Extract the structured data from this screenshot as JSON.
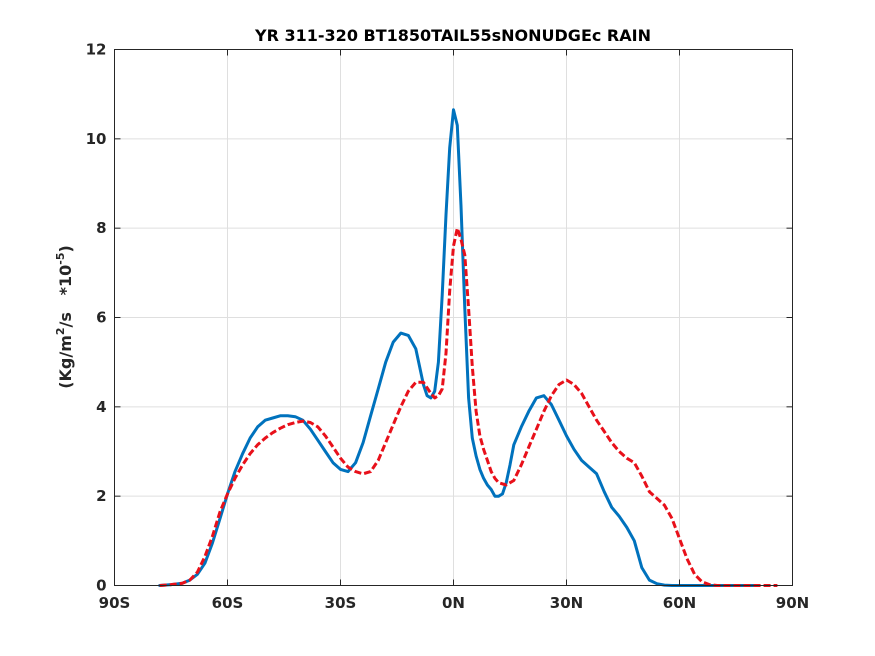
{
  "chart_data": {
    "type": "line",
    "title": "YR 311-320 BT1850TAIL55sNONUDGEc RAIN",
    "ylabel": {
      "main": "(Kg/m",
      "sup1": "2",
      "mid": "/s   *10",
      "sup2": "-5",
      "end": ")"
    },
    "xlim": [
      -90,
      90
    ],
    "ylim": [
      0,
      12
    ],
    "grid": true,
    "xticks": [
      -90,
      -60,
      -30,
      0,
      30,
      60,
      90
    ],
    "xtick_labels": [
      "90S",
      "60S",
      "30S",
      "0N",
      "30N",
      "60N",
      "90N"
    ],
    "yticks": [
      0,
      2,
      4,
      6,
      8,
      10,
      12
    ],
    "ytick_labels": [
      "0",
      "2",
      "4",
      "6",
      "8",
      "10",
      "12"
    ],
    "series": [
      {
        "color": "#0072BD",
        "style": "solid",
        "x": [
          -78,
          -75,
          -72,
          -70,
          -68,
          -66,
          -64,
          -62,
          -60,
          -58,
          -56,
          -54,
          -52,
          -50,
          -48,
          -46,
          -44,
          -42,
          -40,
          -38,
          -36,
          -34,
          -32,
          -30,
          -28,
          -26,
          -24,
          -22,
          -20,
          -18,
          -16,
          -14,
          -12,
          -10,
          -9,
          -8,
          -7,
          -6,
          -5,
          -4,
          -3,
          -2,
          -1,
          0,
          1,
          2,
          3,
          4,
          5,
          6,
          7,
          8,
          9,
          10,
          11,
          12,
          13,
          14,
          15,
          16,
          18,
          20,
          22,
          24,
          26,
          28,
          30,
          32,
          34,
          36,
          38,
          40,
          42,
          44,
          46,
          48,
          50,
          52,
          54,
          56,
          58,
          60,
          62,
          64,
          66,
          68,
          70,
          72,
          75,
          78,
          80
        ],
        "y": [
          0.0,
          0.02,
          0.05,
          0.12,
          0.25,
          0.5,
          0.95,
          1.5,
          2.05,
          2.55,
          2.95,
          3.3,
          3.55,
          3.7,
          3.75,
          3.8,
          3.8,
          3.78,
          3.7,
          3.5,
          3.25,
          3.0,
          2.75,
          2.6,
          2.55,
          2.75,
          3.2,
          3.8,
          4.4,
          5.0,
          5.45,
          5.65,
          5.6,
          5.3,
          4.9,
          4.5,
          4.25,
          4.2,
          4.35,
          5.0,
          6.5,
          8.3,
          9.8,
          10.65,
          10.3,
          8.5,
          6.2,
          4.2,
          3.3,
          2.9,
          2.6,
          2.4,
          2.25,
          2.15,
          2.0,
          2.0,
          2.05,
          2.3,
          2.7,
          3.15,
          3.55,
          3.9,
          4.2,
          4.25,
          4.05,
          3.7,
          3.35,
          3.05,
          2.8,
          2.65,
          2.5,
          2.1,
          1.75,
          1.55,
          1.3,
          1.0,
          0.4,
          0.12,
          0.04,
          0.01,
          0.0,
          0.0,
          0.0,
          0.0,
          0.0,
          0.0,
          0.0,
          0.0,
          0.0,
          0.0,
          0.0
        ]
      },
      {
        "color": "#E8101A",
        "style": "dashed",
        "x": [
          -78,
          -75,
          -72,
          -70,
          -68,
          -66,
          -64,
          -62,
          -60,
          -58,
          -56,
          -54,
          -52,
          -50,
          -48,
          -46,
          -44,
          -42,
          -40,
          -38,
          -36,
          -34,
          -32,
          -30,
          -28,
          -26,
          -24,
          -22,
          -20,
          -18,
          -16,
          -14,
          -12,
          -10,
          -8,
          -6,
          -5,
          -4,
          -3,
          -2,
          -1,
          0,
          1,
          2,
          3,
          4,
          5,
          6,
          7,
          8,
          9,
          10,
          11,
          12,
          14,
          16,
          18,
          20,
          22,
          24,
          26,
          28,
          30,
          32,
          34,
          36,
          38,
          40,
          42,
          44,
          46,
          48,
          50,
          52,
          54,
          56,
          58,
          60,
          62,
          64,
          66,
          68,
          70,
          72,
          74,
          76,
          78,
          80,
          82,
          84,
          86
        ],
        "y": [
          0.0,
          0.02,
          0.05,
          0.12,
          0.3,
          0.65,
          1.1,
          1.65,
          2.05,
          2.4,
          2.7,
          2.95,
          3.15,
          3.3,
          3.42,
          3.52,
          3.6,
          3.65,
          3.68,
          3.65,
          3.55,
          3.35,
          3.1,
          2.85,
          2.65,
          2.55,
          2.5,
          2.55,
          2.8,
          3.2,
          3.6,
          4.0,
          4.35,
          4.55,
          4.55,
          4.3,
          4.2,
          4.25,
          4.4,
          5.2,
          6.6,
          7.6,
          8.0,
          7.75,
          7.4,
          6.2,
          4.9,
          3.9,
          3.35,
          3.05,
          2.8,
          2.55,
          2.4,
          2.3,
          2.25,
          2.35,
          2.7,
          3.1,
          3.5,
          3.9,
          4.25,
          4.5,
          4.6,
          4.5,
          4.3,
          4.0,
          3.7,
          3.45,
          3.2,
          3.0,
          2.85,
          2.75,
          2.45,
          2.1,
          1.95,
          1.8,
          1.5,
          1.05,
          0.6,
          0.25,
          0.08,
          0.02,
          0.0,
          0.0,
          0.0,
          0.0,
          0.0,
          0.0,
          0.0,
          0.0,
          0.0
        ]
      }
    ]
  }
}
